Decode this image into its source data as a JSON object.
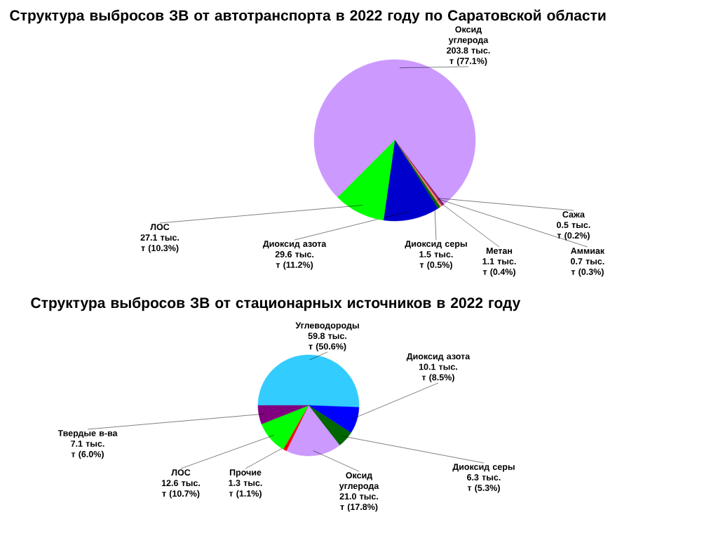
{
  "chart_data": [
    {
      "type": "pie",
      "title": "Структура выбросов ЗВ от автотранспорта в 2022 году по Саратовской области",
      "categories": [
        "Оксид углерода",
        "Сажа",
        "Аммиак",
        "Метан",
        "Диоксид серы",
        "Диоксид азота",
        "ЛОС"
      ],
      "values": [
        203.8,
        0.5,
        0.7,
        1.1,
        1.5,
        29.6,
        27.1
      ],
      "colors": [
        "#cc99ff",
        "#800080",
        "#993333",
        "#ff8080",
        "#006600",
        "#0000cc",
        "#00ff00"
      ],
      "value_labels": [
        "203.8 тыс. т (77.1%)",
        "0.5 тыс. т (0.2%)",
        "0.7 тыс. т (0.3%)",
        "1.1 тыс. т (0.4%)",
        "1.5 тыс. т (0.5%)",
        "29.6 тыс. т (11.2%)",
        "27.1 тыс. т (10.3%)"
      ]
    },
    {
      "type": "pie",
      "title": "Структура выбросов ЗВ от стационарных источников в 2022 году",
      "categories": [
        "Углеводороды",
        "Диоксид азота",
        "Диоксид серы",
        "Оксид углерода",
        "Прочие",
        "ЛОС",
        "Твердые в-ва"
      ],
      "values": [
        59.8,
        10.1,
        6.3,
        21.0,
        1.3,
        12.6,
        7.1
      ],
      "colors": [
        "#33ccff",
        "#0000ff",
        "#006600",
        "#cc99ff",
        "#ff0000",
        "#00ff00",
        "#800080"
      ],
      "value_labels": [
        "59.8 тыс. т (50.6%)",
        "10.1 тыс. т (8.5%)",
        "6.3 тыс. т (5.3%)",
        "21.0 тыс. т (17.8%)",
        "1.3 тыс. т (1.1%)",
        "12.6 тыс. т (10.7%)",
        "7.1 тыс. т (6.0%)"
      ]
    }
  ]
}
